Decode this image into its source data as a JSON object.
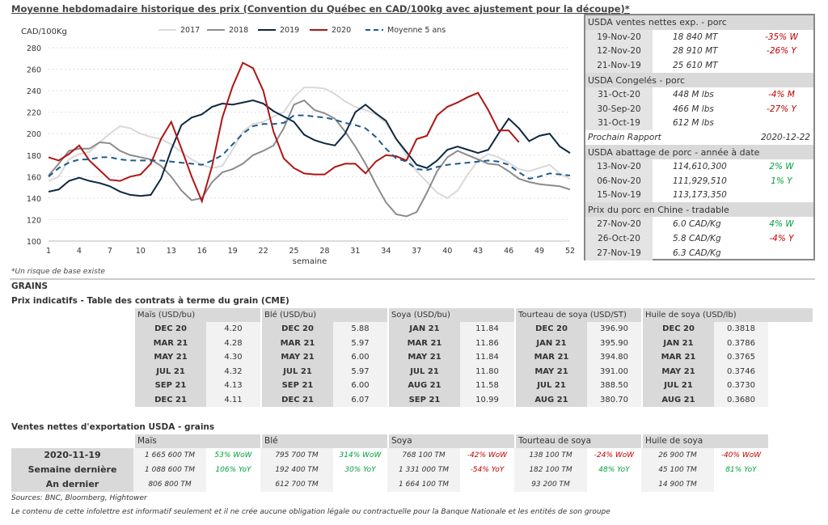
{
  "chart_data": {
    "type": "line",
    "title": "Moyenne hebdomadaire historique des prix (Convention du Québec en CAD/100kg avec ajustement pour la découpe)*",
    "ylabel": "CAD/100Kg",
    "xlabel": "semaine",
    "ylim": [
      100,
      280
    ],
    "yticks": [
      100,
      120,
      140,
      160,
      180,
      200,
      220,
      240,
      260,
      280
    ],
    "xlim": [
      1,
      52
    ],
    "xticks": [
      1,
      4,
      7,
      10,
      13,
      16,
      19,
      22,
      25,
      28,
      31,
      34,
      37,
      40,
      43,
      46,
      49,
      52
    ],
    "grid": "horizontal dotted",
    "legend": "top",
    "series": [
      {
        "name": "2017",
        "color": "#d9d9d9",
        "dash": false,
        "values": [
          156,
          160,
          176,
          181,
          183,
          192,
          200,
          207,
          205,
          200,
          197,
          195,
          190,
          183,
          176,
          171,
          168,
          170,
          185,
          202,
          209,
          211,
          216,
          220,
          234,
          243,
          243,
          242,
          237,
          230,
          225,
          222,
          218,
          210,
          195,
          180,
          165,
          155,
          145,
          140,
          147,
          162,
          175,
          181,
          178,
          173,
          167,
          165,
          168,
          171,
          163,
          158
        ]
      },
      {
        "name": "2018",
        "color": "#8c8c8c",
        "dash": false,
        "values": [
          161,
          172,
          184,
          186,
          186,
          192,
          191,
          184,
          180,
          178,
          176,
          170,
          160,
          147,
          138,
          140,
          155,
          164,
          167,
          172,
          180,
          184,
          189,
          205,
          227,
          231,
          222,
          219,
          214,
          202,
          188,
          172,
          153,
          136,
          125,
          123,
          127,
          145,
          165,
          178,
          184,
          180,
          176,
          172,
          171,
          165,
          158,
          155,
          153,
          152,
          151,
          148
        ]
      },
      {
        "name": "2019",
        "color": "#0e2841",
        "dash": false,
        "values": [
          146,
          148,
          156,
          159,
          156,
          154,
          151,
          146,
          143,
          142,
          143,
          158,
          185,
          208,
          215,
          218,
          225,
          228,
          227,
          229,
          231,
          228,
          221,
          216,
          211,
          199,
          194,
          191,
          189,
          200,
          220,
          227,
          219,
          212,
          195,
          183,
          171,
          168,
          175,
          185,
          188,
          185,
          182,
          185,
          200,
          214,
          205,
          193,
          198,
          200,
          188,
          182
        ]
      },
      {
        "name": "2020",
        "color": "#b01515",
        "dash": false,
        "values": [
          178,
          175,
          181,
          189,
          175,
          166,
          157,
          156,
          160,
          162,
          172,
          195,
          211,
          186,
          160,
          137,
          170,
          215,
          244,
          266,
          261,
          240,
          202,
          177,
          168,
          163,
          162,
          162,
          169,
          172,
          172,
          163,
          174,
          180,
          179,
          175,
          195,
          198,
          217,
          225,
          229,
          234,
          238,
          222,
          203,
          203,
          192
        ]
      },
      {
        "name": "Moyenne 5 ans",
        "color": "#1f5a8c",
        "dash": true,
        "values": [
          160,
          168,
          173,
          176,
          176,
          178,
          178,
          176,
          175,
          175,
          175,
          175,
          174,
          173,
          172,
          171,
          175,
          180,
          190,
          200,
          207,
          209,
          209,
          210,
          217,
          217,
          216,
          215,
          213,
          210,
          208,
          205,
          197,
          186,
          177,
          174,
          167,
          166,
          169,
          171,
          172,
          173,
          174,
          175,
          174,
          171,
          164,
          158,
          160,
          163,
          162,
          161
        ]
      }
    ]
  },
  "chart_note": "*Un risque de base existe",
  "panel": {
    "sections": [
      {
        "title": "USDA ventes nettes exp. - porc",
        "rows": [
          [
            "19-Nov-20",
            "18 840  MT",
            "-35% W",
            "red"
          ],
          [
            "12-Nov-20",
            "28 910  MT",
            "-26% Y",
            "red"
          ],
          [
            "21-Nov-19",
            "25 610  MT",
            "",
            ""
          ]
        ]
      },
      {
        "title": "USDA Congelés - porc",
        "rows": [
          [
            "31-Oct-20",
            "448 M lbs",
            "-4% M",
            "red"
          ],
          [
            "30-Sep-20",
            "466 M lbs",
            "-27% Y",
            "red"
          ],
          [
            "31-Oct-19",
            "612 M lbs",
            "",
            ""
          ]
        ],
        "footer": [
          "Prochain Rapport",
          "2020-12-22"
        ]
      },
      {
        "title": "USDA abattage de porc - année à date",
        "rows": [
          [
            "13-Nov-20",
            "114,610,300",
            "2% W",
            "green"
          ],
          [
            "06-Nov-20",
            "111,929,510",
            "1% Y",
            "green"
          ],
          [
            "15-Nov-19",
            "113,173,350",
            "",
            ""
          ]
        ]
      },
      {
        "title": "Prix du porc en Chine - tradable",
        "rows": [
          [
            "27-Nov-20",
            "6.0 CAD/Kg",
            "4% W",
            "green"
          ],
          [
            "26-Oct-20",
            "5.8 CAD/Kg",
            "-4% Y",
            "red"
          ],
          [
            "27-Nov-19",
            "6.3 CAD/Kg",
            "",
            ""
          ]
        ]
      }
    ]
  },
  "grains": {
    "heading": "GRAINS",
    "futures_title": "Prix indicatifs - Table des contrats à terme du grain (CME)",
    "futures": [
      {
        "name": "Maïs (USD/bu)",
        "rows": [
          [
            "DEC 20",
            "4.20"
          ],
          [
            "MAR 21",
            "4.28"
          ],
          [
            "MAY 21",
            "4.30"
          ],
          [
            "JUL 21",
            "4.32"
          ],
          [
            "SEP 21",
            "4.13"
          ],
          [
            "DEC 21",
            "4.11"
          ]
        ]
      },
      {
        "name": "Blé (USD/bu)",
        "rows": [
          [
            "DEC 20",
            "5.88"
          ],
          [
            "MAR 21",
            "5.97"
          ],
          [
            "MAY 21",
            "6.00"
          ],
          [
            "JUL 21",
            "5.97"
          ],
          [
            "SEP 21",
            "6.00"
          ],
          [
            "DEC 21",
            "6.07"
          ]
        ]
      },
      {
        "name": "Soya (USD/bu)",
        "rows": [
          [
            "JAN 21",
            "11.84"
          ],
          [
            "MAR 21",
            "11.86"
          ],
          [
            "MAY 21",
            "11.84"
          ],
          [
            "JUL 21",
            "11.80"
          ],
          [
            "AUG 21",
            "11.58"
          ],
          [
            "SEP 21",
            "10.99"
          ]
        ]
      },
      {
        "name": "Tourteau de soya (USD/ST)",
        "rows": [
          [
            "DEC 20",
            "396.90"
          ],
          [
            "JAN 21",
            "395.90"
          ],
          [
            "MAR 21",
            "394.80"
          ],
          [
            "MAY 21",
            "391.00"
          ],
          [
            "JUL 21",
            "388.50"
          ],
          [
            "AUG 21",
            "380.70"
          ]
        ]
      },
      {
        "name": "Huile de soya (USD/lb)",
        "rows": [
          [
            "DEC 20",
            "0.3818"
          ],
          [
            "JAN 21",
            "0.3786"
          ],
          [
            "MAR 21",
            "0.3765"
          ],
          [
            "MAY 21",
            "0.3746"
          ],
          [
            "JUL 21",
            "0.3730"
          ],
          [
            "AUG 21",
            "0.3680"
          ]
        ]
      }
    ],
    "export_title": "Ventes nettes d'exportation USDA - grains",
    "export_groups": [
      "Maïs",
      "Blé",
      "Soya",
      "Tourteau de soya",
      "Huile de soya"
    ],
    "export_rows": [
      {
        "label": "2020-11-19",
        "cells": [
          [
            "1 665 600 TM",
            "53% WoW",
            "green"
          ],
          [
            "795 700 TM",
            "314% WoW",
            "green"
          ],
          [
            "768 100 TM",
            "-42% WoW",
            "red"
          ],
          [
            "138 100 TM",
            "-24% WoW",
            "red"
          ],
          [
            "26 900 TM",
            "-40% WoW",
            "red"
          ]
        ]
      },
      {
        "label": "Semaine dernière",
        "cells": [
          [
            "1 088 600 TM",
            "106% YoY",
            "green"
          ],
          [
            "192 400 TM",
            "30% YoY",
            "green"
          ],
          [
            "1 331 000 TM",
            "-54% YoY",
            "red"
          ],
          [
            "182 100 TM",
            "48% YoY",
            "green"
          ],
          [
            "45 100 TM",
            "81% YoY",
            "green"
          ]
        ]
      },
      {
        "label": "An dernier",
        "cells": [
          [
            "806 800 TM",
            "",
            ""
          ],
          [
            "612 700 TM",
            "",
            ""
          ],
          [
            "1 664 100 TM",
            "",
            ""
          ],
          [
            "93 200 TM",
            "",
            ""
          ],
          [
            "14 900 TM",
            "",
            ""
          ]
        ]
      }
    ]
  },
  "sources": "Sources: BNC, Bloomberg, Hightower",
  "disclaimer": "Le contenu de cette infolettre est informatif seulement et il ne crée aucune obligation légale ou contractuelle pour la Banque Nationale et les entités de son groupe"
}
